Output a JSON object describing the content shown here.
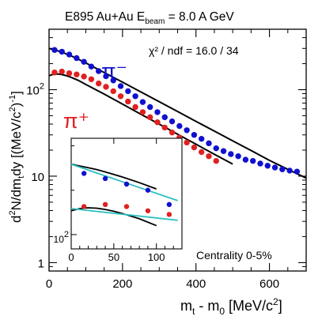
{
  "chart_data": {
    "type": "scatter",
    "title_parts": {
      "pre": "E895  Au+Au E",
      "sub": "beam",
      "post": " = 8.0 A GeV"
    },
    "xlabel_parts": {
      "m1": "m",
      "s1": "t",
      "mid": " - m",
      "s2": "0",
      "post1": " [MeV/c",
      "sup": "2",
      "post2": "]"
    },
    "ylabel_parts": {
      "a": "d",
      "sup1": "2",
      "b": "N/dm",
      "sub1": "t",
      "c": "dy [(MeV/c",
      "sup2": "2",
      "d": ")",
      "sup3": "-1",
      "e": "]"
    },
    "xlim": [
      0,
      700
    ],
    "ylim": [
      0.8,
      500
    ],
    "y_scale": "log",
    "x_ticks": [
      "0",
      "200",
      "400",
      "600"
    ],
    "y_ticks": [
      "1",
      "10",
      "10^2"
    ],
    "annotations": {
      "chi2": "χ² / ndf = 16.0 / 34",
      "centrality": "Centrality 0-5%"
    },
    "series": [
      {
        "name": "π⁻",
        "color": "#1010d0",
        "x": [
          15,
          35,
          55,
          75,
          95,
          115,
          135,
          155,
          175,
          195,
          215,
          235,
          255,
          275,
          295,
          315,
          335,
          355,
          375,
          395,
          415,
          435,
          455,
          475,
          495,
          515,
          535,
          555,
          575,
          595,
          615,
          635,
          655,
          675
        ],
        "y": [
          288,
          275,
          255,
          232,
          210,
          185,
          164,
          143,
          128,
          110,
          96,
          84,
          72,
          63,
          55,
          48,
          43,
          38,
          34,
          30,
          27,
          24,
          21,
          19.5,
          18,
          17,
          15.5,
          15,
          14,
          13.2,
          12.6,
          12,
          11.6,
          11.3
        ]
      },
      {
        "name": "π⁺",
        "color": "#e02020",
        "x": [
          15,
          35,
          55,
          75,
          95,
          115,
          135,
          155,
          175,
          195,
          215,
          235,
          255,
          275,
          295,
          315,
          335,
          355,
          375,
          395,
          415,
          435,
          455
        ],
        "y": [
          158,
          162,
          155,
          150,
          142,
          132,
          118,
          108,
          96,
          84,
          73,
          63,
          55,
          48,
          42,
          36.5,
          32,
          28,
          24.5,
          21.5,
          19,
          17,
          15
        ]
      }
    ],
    "fits": [
      {
        "x": [
          0,
          10,
          20,
          30,
          40,
          50,
          60,
          80,
          100,
          150,
          200,
          250,
          300,
          350,
          400,
          450,
          500,
          550,
          600,
          650,
          700
        ],
        "y": [
          300,
          292,
          284,
          276,
          266,
          256,
          246,
          225,
          204,
          158,
          122,
          94,
          72.5,
          56,
          43,
          33.2,
          25.6,
          19.8,
          15.2,
          12,
          9.5
        ]
      },
      {
        "x": [
          0,
          10,
          20,
          30,
          40,
          50,
          60,
          80,
          100,
          150,
          200,
          250,
          300,
          350,
          400,
          450,
          500
        ],
        "y": [
          145,
          150,
          152,
          151,
          148,
          144,
          139,
          128,
          115,
          89,
          68,
          52,
          40,
          30.5,
          23.4,
          17.9,
          13.8
        ]
      }
    ],
    "labels": {
      "pim": "π⁻",
      "pip": "π⁺"
    },
    "inset": {
      "xlim": [
        0,
        130
      ],
      "x_ticks": [
        "0",
        "50",
        "100"
      ],
      "y_ticks": [
        "10^2"
      ],
      "pim_points": {
        "x": [
          15,
          40,
          65,
          90,
          115
        ],
        "y": [
          260,
          240,
          220,
          200,
          160
        ]
      },
      "pip_points": {
        "x": [
          15,
          40,
          65,
          90,
          115
        ],
        "y": [
          155,
          160,
          155,
          145,
          137
        ]
      }
    }
  }
}
